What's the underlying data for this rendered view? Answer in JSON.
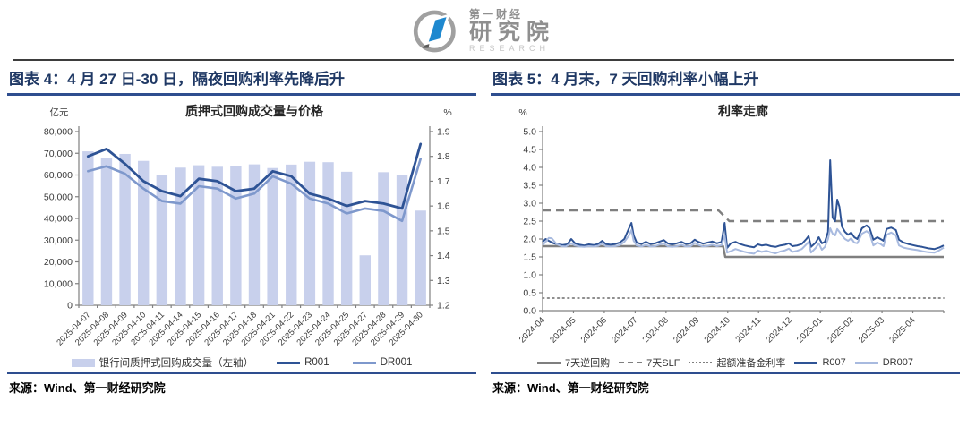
{
  "header": {
    "logo": {
      "brand_top": "第一财经",
      "brand_main": "研究院",
      "brand_sub": "RESEARCH",
      "accent_color": "#1e88cf",
      "ring_color": "#a0a0a0"
    }
  },
  "figure4": {
    "heading": "图表 4：4 月 27 日-30 日，隔夜回购利率先降后升",
    "source": "来源：Wind、第一财经研究院"
  },
  "figure5": {
    "heading": "图表 5：4 月末，7 天回购利率小幅上升",
    "source": "来源：Wind、第一财经研究院"
  },
  "chart_data": [
    {
      "type": "bar",
      "title": "质押式回购成交量与价格",
      "left_axis": {
        "unit": "亿元",
        "min": 0,
        "max": 80000,
        "step": 10000
      },
      "right_axis": {
        "unit": "%",
        "min": 1.2,
        "max": 1.9,
        "step": 0.1
      },
      "grid": false,
      "legend_position": "bottom",
      "categories": [
        "2025-04-07",
        "2025-04-08",
        "2025-04-09",
        "2025-04-10",
        "2025-04-11",
        "2025-04-14",
        "2025-04-15",
        "2025-04-16",
        "2025-04-17",
        "2025-04-18",
        "2025-04-21",
        "2025-04-22",
        "2025-04-23",
        "2025-04-24",
        "2025-04-25",
        "2025-04-27",
        "2025-04-28",
        "2025-04-29",
        "2025-04-30"
      ],
      "bar_series": {
        "name": "银行间质押式回购成交量（左轴）",
        "axis": "left",
        "color": "#c8d0ec",
        "values": [
          70900,
          67700,
          69700,
          66500,
          60200,
          63400,
          64500,
          63800,
          64200,
          64900,
          63200,
          64800,
          66100,
          65900,
          61500,
          23000,
          61300,
          60000,
          43600
        ]
      },
      "line_series": [
        {
          "name": "R001",
          "axis": "right",
          "color": "#2e5395",
          "width": 2.8,
          "values": [
            1.8,
            1.83,
            1.77,
            1.7,
            1.66,
            1.64,
            1.71,
            1.7,
            1.66,
            1.67,
            1.74,
            1.72,
            1.65,
            1.63,
            1.6,
            1.62,
            1.61,
            1.59,
            1.85
          ]
        },
        {
          "name": "DR001",
          "axis": "right",
          "color": "#7e98cc",
          "width": 2.6,
          "values": [
            1.74,
            1.76,
            1.73,
            1.67,
            1.62,
            1.61,
            1.68,
            1.67,
            1.63,
            1.65,
            1.72,
            1.69,
            1.63,
            1.61,
            1.57,
            1.59,
            1.58,
            1.54,
            1.79
          ]
        }
      ]
    },
    {
      "type": "line",
      "title": "利率走廊",
      "y_axis": {
        "unit": "%",
        "min": 0,
        "max": 5,
        "step": 0.5
      },
      "x_axis": {
        "min": 0,
        "max": 13,
        "labels": [
          "2024-04",
          "2024-05",
          "2024-06",
          "2024-07",
          "2024-08",
          "2024-09",
          "2024-10",
          "2024-11",
          "2024-12",
          "2025-01",
          "2025-02",
          "2025-03",
          "2025-04"
        ]
      },
      "grid": false,
      "legend_position": "bottom",
      "series": [
        {
          "name": "7天逆回购",
          "color": "#7f7f7f",
          "style": "solid",
          "width": 2.4,
          "points": [
            [
              0,
              1.8
            ],
            [
              5.85,
              1.8
            ],
            [
              5.92,
              1.5
            ],
            [
              13,
              1.5
            ]
          ]
        },
        {
          "name": "7天SLF",
          "color": "#7f7f7f",
          "style": "dashed",
          "width": 2.4,
          "points": [
            [
              0,
              2.8
            ],
            [
              5.7,
              2.8
            ],
            [
              6.05,
              2.5
            ],
            [
              13,
              2.5
            ]
          ]
        },
        {
          "name": "超额准备金利率",
          "color": "#7f7f7f",
          "style": "dotted",
          "width": 1.8,
          "points": [
            [
              0,
              0.35
            ],
            [
              13,
              0.35
            ]
          ]
        },
        {
          "name": "R007",
          "color": "#2e5395",
          "style": "solid",
          "width": 2,
          "points": [
            [
              0,
              1.92
            ],
            [
              0.1,
              2.0
            ],
            [
              0.2,
              1.95
            ],
            [
              0.35,
              1.88
            ],
            [
              0.5,
              1.85
            ],
            [
              0.65,
              1.83
            ],
            [
              0.8,
              1.85
            ],
            [
              0.93,
              2.0
            ],
            [
              1.05,
              1.88
            ],
            [
              1.2,
              1.84
            ],
            [
              1.35,
              1.82
            ],
            [
              1.5,
              1.85
            ],
            [
              1.65,
              1.83
            ],
            [
              1.8,
              1.86
            ],
            [
              1.93,
              1.95
            ],
            [
              2.05,
              1.86
            ],
            [
              2.2,
              1.84
            ],
            [
              2.35,
              1.86
            ],
            [
              2.5,
              1.9
            ],
            [
              2.65,
              2.0
            ],
            [
              2.8,
              2.3
            ],
            [
              2.88,
              2.45
            ],
            [
              2.95,
              2.1
            ],
            [
              3.05,
              1.9
            ],
            [
              3.2,
              1.86
            ],
            [
              3.35,
              1.92
            ],
            [
              3.5,
              1.86
            ],
            [
              3.65,
              1.88
            ],
            [
              3.8,
              1.93
            ],
            [
              3.93,
              1.97
            ],
            [
              4.05,
              1.88
            ],
            [
              4.2,
              1.85
            ],
            [
              4.35,
              1.88
            ],
            [
              4.5,
              1.92
            ],
            [
              4.65,
              1.86
            ],
            [
              4.8,
              1.88
            ],
            [
              4.93,
              1.98
            ],
            [
              5.05,
              1.92
            ],
            [
              5.2,
              1.87
            ],
            [
              5.35,
              1.9
            ],
            [
              5.5,
              1.93
            ],
            [
              5.65,
              1.88
            ],
            [
              5.8,
              1.92
            ],
            [
              5.9,
              2.45
            ],
            [
              5.98,
              1.75
            ],
            [
              6.1,
              1.88
            ],
            [
              6.25,
              1.92
            ],
            [
              6.4,
              1.86
            ],
            [
              6.55,
              1.82
            ],
            [
              6.7,
              1.79
            ],
            [
              6.85,
              1.77
            ],
            [
              6.98,
              1.85
            ],
            [
              7.1,
              1.82
            ],
            [
              7.25,
              1.84
            ],
            [
              7.4,
              1.8
            ],
            [
              7.55,
              1.78
            ],
            [
              7.7,
              1.82
            ],
            [
              7.85,
              1.84
            ],
            [
              7.98,
              1.88
            ],
            [
              8.1,
              1.8
            ],
            [
              8.25,
              1.82
            ],
            [
              8.4,
              1.86
            ],
            [
              8.55,
              2.0
            ],
            [
              8.62,
              2.08
            ],
            [
              8.7,
              1.78
            ],
            [
              8.85,
              1.9
            ],
            [
              8.95,
              2.05
            ],
            [
              9.05,
              1.88
            ],
            [
              9.15,
              1.92
            ],
            [
              9.25,
              2.2
            ],
            [
              9.32,
              4.2
            ],
            [
              9.4,
              2.6
            ],
            [
              9.48,
              2.5
            ],
            [
              9.55,
              3.1
            ],
            [
              9.62,
              2.9
            ],
            [
              9.7,
              2.35
            ],
            [
              9.8,
              2.2
            ],
            [
              9.9,
              2.12
            ],
            [
              10.0,
              2.18
            ],
            [
              10.1,
              2.05
            ],
            [
              10.2,
              2.0
            ],
            [
              10.35,
              2.3
            ],
            [
              10.5,
              2.38
            ],
            [
              10.6,
              2.3
            ],
            [
              10.72,
              1.98
            ],
            [
              10.85,
              2.05
            ],
            [
              10.95,
              2.0
            ],
            [
              11.05,
              1.95
            ],
            [
              11.15,
              2.28
            ],
            [
              11.3,
              2.32
            ],
            [
              11.45,
              2.25
            ],
            [
              11.55,
              1.98
            ],
            [
              11.7,
              1.9
            ],
            [
              11.85,
              1.86
            ],
            [
              12.0,
              1.83
            ],
            [
              12.15,
              1.8
            ],
            [
              12.3,
              1.78
            ],
            [
              12.5,
              1.74
            ],
            [
              12.7,
              1.72
            ],
            [
              12.85,
              1.76
            ],
            [
              13,
              1.82
            ]
          ]
        },
        {
          "name": "DR007",
          "color": "#a8badf",
          "style": "solid",
          "width": 2,
          "points": [
            [
              0,
              1.83
            ],
            [
              0.1,
              1.92
            ],
            [
              0.2,
              2.03
            ],
            [
              0.3,
              2.02
            ],
            [
              0.45,
              1.86
            ],
            [
              0.6,
              1.8
            ],
            [
              0.75,
              1.79
            ],
            [
              0.93,
              1.88
            ],
            [
              1.05,
              1.82
            ],
            [
              1.2,
              1.79
            ],
            [
              1.35,
              1.78
            ],
            [
              1.5,
              1.8
            ],
            [
              1.65,
              1.79
            ],
            [
              1.8,
              1.81
            ],
            [
              1.93,
              1.88
            ],
            [
              2.05,
              1.8
            ],
            [
              2.2,
              1.79
            ],
            [
              2.35,
              1.8
            ],
            [
              2.5,
              1.83
            ],
            [
              2.65,
              1.92
            ],
            [
              2.8,
              2.1
            ],
            [
              2.88,
              2.25
            ],
            [
              2.95,
              1.95
            ],
            [
              3.05,
              1.82
            ],
            [
              3.2,
              1.79
            ],
            [
              3.35,
              1.84
            ],
            [
              3.5,
              1.79
            ],
            [
              3.65,
              1.8
            ],
            [
              3.8,
              1.85
            ],
            [
              3.93,
              1.88
            ],
            [
              4.05,
              1.8
            ],
            [
              4.2,
              1.78
            ],
            [
              4.35,
              1.8
            ],
            [
              4.5,
              1.84
            ],
            [
              4.65,
              1.79
            ],
            [
              4.8,
              1.8
            ],
            [
              4.93,
              1.89
            ],
            [
              5.05,
              1.84
            ],
            [
              5.2,
              1.79
            ],
            [
              5.35,
              1.81
            ],
            [
              5.5,
              1.84
            ],
            [
              5.65,
              1.8
            ],
            [
              5.8,
              1.83
            ],
            [
              5.9,
              2.1
            ],
            [
              5.98,
              1.62
            ],
            [
              6.1,
              1.66
            ],
            [
              6.25,
              1.72
            ],
            [
              6.4,
              1.68
            ],
            [
              6.55,
              1.64
            ],
            [
              6.7,
              1.61
            ],
            [
              6.85,
              1.59
            ],
            [
              6.98,
              1.68
            ],
            [
              7.1,
              1.64
            ],
            [
              7.25,
              1.67
            ],
            [
              7.4,
              1.63
            ],
            [
              7.55,
              1.6
            ],
            [
              7.7,
              1.65
            ],
            [
              7.85,
              1.68
            ],
            [
              7.98,
              1.73
            ],
            [
              8.1,
              1.64
            ],
            [
              8.25,
              1.67
            ],
            [
              8.4,
              1.72
            ],
            [
              8.55,
              1.85
            ],
            [
              8.62,
              1.92
            ],
            [
              8.7,
              1.62
            ],
            [
              8.85,
              1.75
            ],
            [
              8.95,
              1.88
            ],
            [
              9.05,
              1.7
            ],
            [
              9.15,
              1.78
            ],
            [
              9.25,
              2.0
            ],
            [
              9.32,
              2.3
            ],
            [
              9.4,
              2.15
            ],
            [
              9.48,
              2.1
            ],
            [
              9.55,
              2.28
            ],
            [
              9.62,
              2.2
            ],
            [
              9.7,
              2.1
            ],
            [
              9.8,
              2.0
            ],
            [
              9.9,
              1.95
            ],
            [
              10.0,
              2.02
            ],
            [
              10.1,
              1.9
            ],
            [
              10.2,
              1.88
            ],
            [
              10.35,
              2.15
            ],
            [
              10.5,
              2.22
            ],
            [
              10.6,
              2.15
            ],
            [
              10.72,
              1.82
            ],
            [
              10.85,
              1.9
            ],
            [
              10.95,
              1.86
            ],
            [
              11.05,
              1.8
            ],
            [
              11.15,
              2.12
            ],
            [
              11.3,
              2.18
            ],
            [
              11.45,
              2.1
            ],
            [
              11.55,
              1.82
            ],
            [
              11.7,
              1.76
            ],
            [
              11.85,
              1.73
            ],
            [
              12.0,
              1.71
            ],
            [
              12.15,
              1.69
            ],
            [
              12.3,
              1.66
            ],
            [
              12.5,
              1.63
            ],
            [
              12.7,
              1.62
            ],
            [
              12.85,
              1.68
            ],
            [
              13,
              1.76
            ]
          ]
        }
      ]
    }
  ]
}
